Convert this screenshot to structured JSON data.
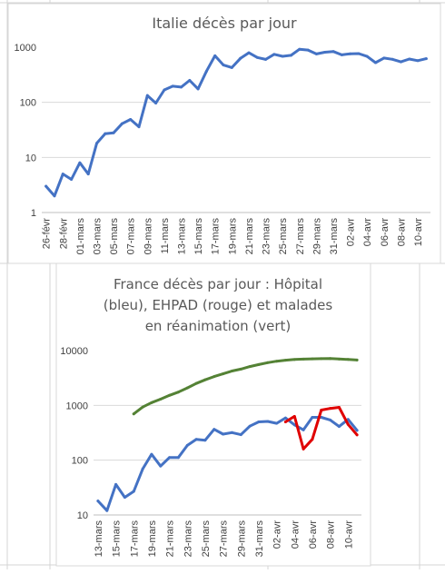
{
  "chart_data": [
    {
      "type": "line",
      "title": "Italie décès par jour",
      "y_scale": "log",
      "ylim": [
        1,
        1000
      ],
      "y_ticks": [
        "1",
        "10",
        "100",
        "1000"
      ],
      "x_tick_labels": [
        "26-févr",
        "28-févr",
        "01-mars",
        "03-mars",
        "05-mars",
        "07-mars",
        "09-mars",
        "11-mars",
        "13-mars",
        "15-mars",
        "17-mars",
        "19-mars",
        "21-mars",
        "23-mars",
        "25-mars",
        "27-mars",
        "29-mars",
        "31-mars",
        "02-avr",
        "04-avr",
        "06-avr",
        "08-avr",
        "10-avr"
      ],
      "x": [
        "26-févr",
        "27-févr",
        "28-févr",
        "29-févr",
        "01-mars",
        "02-mars",
        "03-mars",
        "04-mars",
        "05-mars",
        "06-mars",
        "07-mars",
        "08-mars",
        "09-mars",
        "10-mars",
        "11-mars",
        "12-mars",
        "13-mars",
        "14-mars",
        "15-mars",
        "16-mars",
        "17-mars",
        "18-mars",
        "19-mars",
        "20-mars",
        "21-mars",
        "22-mars",
        "23-mars",
        "24-mars",
        "25-mars",
        "26-mars",
        "27-mars",
        "28-mars",
        "29-mars",
        "30-mars",
        "31-mars",
        "01-avr",
        "02-avr",
        "03-avr",
        "04-avr",
        "05-avr",
        "06-avr",
        "07-avr",
        "08-avr",
        "09-avr",
        "10-avr",
        "11-avr"
      ],
      "grid": true,
      "legend": "none",
      "series": [
        {
          "color": "#4472c4",
          "values": [
            3,
            2,
            5,
            4,
            8,
            5,
            18,
            27,
            28,
            41,
            49,
            36,
            133,
            97,
            168,
            196,
            189,
            250,
            175,
            368,
            700,
            475,
            427,
            627,
            793,
            651,
            601,
            743,
            683,
            712,
            919,
            889,
            756,
            812,
            837,
            727,
            760,
            766,
            681,
            525,
            636,
            604,
            542,
            610,
            570,
            619
          ]
        }
      ]
    },
    {
      "type": "line",
      "title": [
        "France décès par jour : Hôpital",
        "(bleu),  EHPAD (rouge) et malades",
        "en réanimation (vert)"
      ],
      "y_scale": "log",
      "ylim": [
        10,
        10000
      ],
      "y_ticks": [
        "10",
        "100",
        "1000",
        "10000"
      ],
      "x_tick_labels": [
        "13-mars",
        "15-mars",
        "17-mars",
        "19-mars",
        "21-mars",
        "23-mars",
        "25-mars",
        "27-mars",
        "29-mars",
        "31-mars",
        "02-avr",
        "04-avr",
        "06-avr",
        "08-avr",
        "10-avr"
      ],
      "x": [
        "13-mars",
        "14-mars",
        "15-mars",
        "16-mars",
        "17-mars",
        "18-mars",
        "19-mars",
        "20-mars",
        "21-mars",
        "22-mars",
        "23-mars",
        "24-mars",
        "25-mars",
        "26-mars",
        "27-mars",
        "28-mars",
        "29-mars",
        "30-mars",
        "31-mars",
        "01-avr",
        "02-avr",
        "03-avr",
        "04-avr",
        "05-avr",
        "06-avr",
        "07-avr",
        "08-avr",
        "09-avr",
        "10-avr",
        "11-avr"
      ],
      "grid": true,
      "legend": "none",
      "series": [
        {
          "color": "#4472c4",
          "values": [
            18,
            12,
            36,
            21,
            27,
            69,
            128,
            78,
            112,
            112,
            186,
            240,
            231,
            365,
            299,
            319,
            292,
            418,
            499,
            509,
            471,
            588,
            441,
            357,
            605,
            605,
            541,
            412,
            554,
            350
          ]
        },
        {
          "color": "#e00000",
          "values": [
            null,
            null,
            null,
            null,
            null,
            null,
            null,
            null,
            null,
            null,
            null,
            null,
            null,
            null,
            null,
            null,
            null,
            null,
            null,
            null,
            null,
            500,
            630,
            160,
            240,
            820,
            880,
            920,
            450,
            290
          ]
        },
        {
          "color": "#548235",
          "values": [
            null,
            null,
            null,
            null,
            699,
            931,
            1122,
            1297,
            1525,
            1746,
            2082,
            2516,
            2931,
            3351,
            3758,
            4236,
            4592,
            5107,
            5565,
            6017,
            6399,
            6662,
            6872,
            6978,
            7072,
            7131,
            7148,
            7004,
            6883,
            6730
          ]
        }
      ]
    }
  ]
}
